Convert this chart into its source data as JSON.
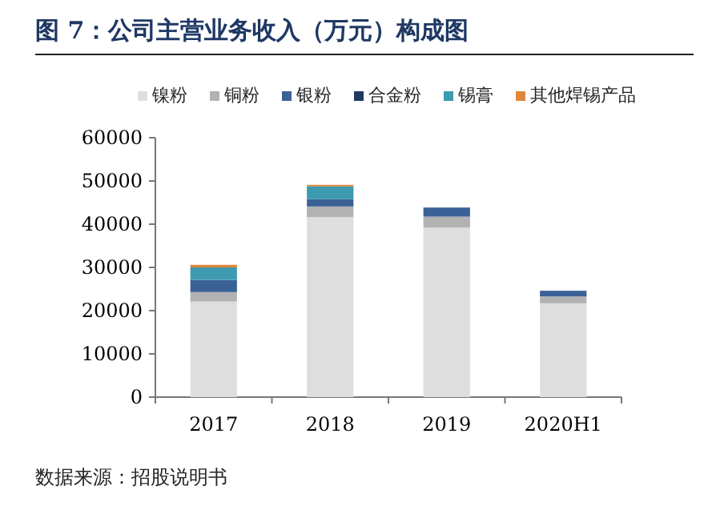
{
  "chart_data": {
    "type": "bar",
    "stacked": true,
    "title": "图 7：公司主营业务收入（万元）构成图",
    "annotations": [
      "数据来源：招股说明书"
    ],
    "categories": [
      "2017",
      "2018",
      "2019",
      "2020H1"
    ],
    "series": [
      {
        "name": "镍粉",
        "color": "#dedede",
        "values": [
          22100,
          41650,
          39200,
          21700
        ]
      },
      {
        "name": "铜粉",
        "color": "#b2b2b2",
        "values": [
          2200,
          2450,
          2550,
          1600
        ]
      },
      {
        "name": "银粉",
        "color": "#3b6296",
        "values": [
          2800,
          1700,
          2100,
          1300
        ]
      },
      {
        "name": "合金粉",
        "color": "#1f3a5f",
        "values": [
          0,
          0,
          0,
          0
        ]
      },
      {
        "name": "锡膏",
        "color": "#3d9ab0",
        "values": [
          2900,
          2950,
          0,
          0
        ]
      },
      {
        "name": "其他焊锡产品",
        "color": "#e0873a",
        "values": [
          600,
          350,
          0,
          0
        ]
      }
    ],
    "ylim": [
      0,
      60000
    ],
    "yticks": [
      0,
      10000,
      20000,
      30000,
      40000,
      50000,
      60000
    ],
    "grid": false,
    "legend": "top"
  }
}
